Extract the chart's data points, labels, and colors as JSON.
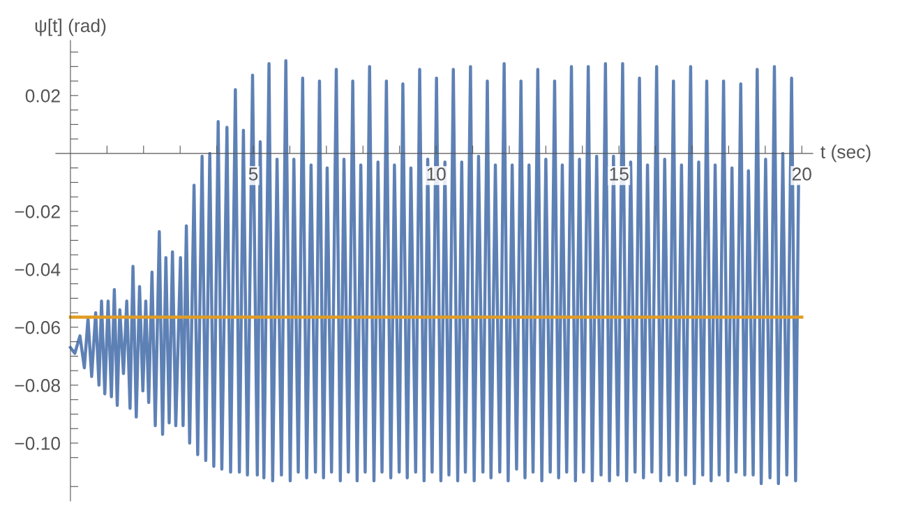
{
  "chart_data": {
    "type": "line",
    "xlabel": "t (sec)",
    "ylabel": "ψ[t] (rad)",
    "xlim": [
      -0.4,
      20.3
    ],
    "ylim": [
      -0.12,
      0.039
    ],
    "xticks": [
      {
        "value": 1,
        "label": null
      },
      {
        "value": 2,
        "label": null
      },
      {
        "value": 3,
        "label": null
      },
      {
        "value": 4,
        "label": null
      },
      5,
      {
        "value": 6,
        "label": null
      },
      {
        "value": 7,
        "label": null
      },
      {
        "value": 8,
        "label": null
      },
      {
        "value": 9,
        "label": null
      },
      10,
      {
        "value": 11,
        "label": null
      },
      {
        "value": 12,
        "label": null
      },
      {
        "value": 13,
        "label": null
      },
      {
        "value": 14,
        "label": null
      },
      15,
      {
        "value": 16,
        "label": null
      },
      {
        "value": 17,
        "label": null
      },
      {
        "value": 18,
        "label": null
      },
      {
        "value": 19,
        "label": null
      },
      20
    ],
    "yticks": [
      {
        "value": -0.115,
        "label": null
      },
      {
        "value": -0.1,
        "label": "−0.10"
      },
      {
        "value": -0.105,
        "label": null
      },
      {
        "value": -0.095,
        "label": null
      },
      {
        "value": -0.09,
        "label": null
      },
      {
        "value": -0.085,
        "label": null
      },
      {
        "value": -0.08,
        "label": "−0.08"
      },
      {
        "value": -0.075,
        "label": null
      },
      {
        "value": -0.07,
        "label": null
      },
      {
        "value": -0.065,
        "label": null
      },
      {
        "value": -0.06,
        "label": "−0.06"
      },
      {
        "value": -0.055,
        "label": null
      },
      {
        "value": -0.05,
        "label": null
      },
      {
        "value": -0.045,
        "label": null
      },
      {
        "value": -0.04,
        "label": "−0.04"
      },
      {
        "value": -0.035,
        "label": null
      },
      {
        "value": -0.03,
        "label": null
      },
      {
        "value": -0.025,
        "label": null
      },
      {
        "value": -0.02,
        "label": "−0.02"
      },
      {
        "value": -0.015,
        "label": null
      },
      {
        "value": -0.01,
        "label": null
      },
      {
        "value": -0.005,
        "label": null
      },
      {
        "value": 0.005,
        "label": null
      },
      {
        "value": 0.01,
        "label": null
      },
      {
        "value": 0.015,
        "label": null
      },
      {
        "value": 0.02,
        "label": "0.02"
      },
      {
        "value": 0.025,
        "label": null
      },
      {
        "value": 0.03,
        "label": null
      },
      {
        "value": 0.035,
        "label": null
      }
    ],
    "grid": false,
    "marker": "none",
    "line_style": "solid",
    "series": [
      {
        "color": "#5e81b5",
        "x": [
          0,
          0.12,
          0.26,
          0.38,
          0.48,
          0.58,
          0.69,
          0.78,
          0.85,
          0.94,
          1.03,
          1.12,
          1.2,
          1.28,
          1.35,
          1.45,
          1.54,
          1.63,
          1.71,
          1.8,
          1.89,
          1.98,
          2.06,
          2.14,
          2.23,
          2.32,
          2.43,
          2.52,
          2.61,
          2.7,
          2.79,
          2.88,
          3.01,
          3.08,
          3.17,
          3.26,
          3.38,
          3.48,
          3.6,
          3.7,
          3.81,
          3.92,
          4.04,
          4.14,
          4.28,
          4.38,
          4.51,
          4.62,
          4.73,
          4.84,
          4.98,
          5.11,
          5.19,
          5.29,
          5.43,
          5.53,
          5.65,
          5.77,
          5.89,
          6.01,
          6.11,
          6.23,
          6.35,
          6.46,
          6.58,
          6.7,
          6.81,
          6.92,
          7.02,
          7.14,
          7.27,
          7.38,
          7.48,
          7.6,
          7.72,
          7.84,
          7.94,
          8.06,
          8.18,
          8.3,
          8.41,
          8.52,
          8.64,
          8.76,
          8.86,
          8.99,
          9.09,
          9.21,
          9.31,
          9.44,
          9.55,
          9.67,
          9.77,
          9.89,
          10.01,
          10.13,
          10.24,
          10.35,
          10.47,
          10.59,
          10.7,
          10.8,
          10.94,
          11.04,
          11.16,
          11.28,
          11.4,
          11.5,
          11.62,
          11.74,
          11.86,
          11.97,
          12.08,
          12.2,
          12.32,
          12.43,
          12.54,
          12.65,
          12.78,
          12.89,
          13.0,
          13.12,
          13.24,
          13.35,
          13.45,
          13.57,
          13.7,
          13.81,
          13.92,
          14.03,
          14.16,
          14.27,
          14.39,
          14.51,
          14.63,
          14.74,
          14.85,
          14.97,
          15.1,
          15.21,
          15.32,
          15.44,
          15.56,
          15.67,
          15.78,
          15.9,
          16.03,
          16.14,
          16.25,
          16.37,
          16.49,
          16.59,
          16.71,
          16.82,
          16.96,
          17.06,
          17.18,
          17.29,
          17.4,
          17.52,
          17.63,
          17.74,
          17.86,
          17.98,
          18.09,
          18.2,
          18.33,
          18.44,
          18.54,
          18.67,
          18.78,
          18.89,
          19.01,
          19.13,
          19.25,
          19.36,
          19.48,
          19.59,
          19.72,
          19.83,
          19.91
        ],
        "values": [
          -0.067,
          -0.069,
          -0.063,
          -0.074,
          -0.057,
          -0.077,
          -0.055,
          -0.08,
          -0.051,
          -0.083,
          -0.051,
          -0.084,
          -0.047,
          -0.087,
          -0.054,
          -0.076,
          -0.051,
          -0.088,
          -0.039,
          -0.091,
          -0.046,
          -0.082,
          -0.051,
          -0.086,
          -0.041,
          -0.094,
          -0.027,
          -0.097,
          -0.036,
          -0.093,
          -0.034,
          -0.094,
          -0.036,
          -0.094,
          -0.025,
          -0.1,
          -0.011,
          -0.104,
          -0.001,
          -0.106,
          0.0,
          -0.108,
          0.011,
          -0.109,
          0.009,
          -0.11,
          0.022,
          -0.11,
          0.008,
          -0.111,
          0.027,
          -0.111,
          0.004,
          -0.112,
          0.031,
          -0.113,
          -0.002,
          -0.111,
          0.032,
          -0.113,
          -0.002,
          -0.11,
          0.026,
          -0.112,
          -0.004,
          -0.11,
          0.025,
          -0.112,
          -0.005,
          -0.11,
          0.029,
          -0.113,
          -0.002,
          -0.11,
          0.025,
          -0.113,
          -0.004,
          -0.11,
          0.03,
          -0.113,
          -0.003,
          -0.11,
          0.025,
          -0.112,
          -0.004,
          -0.11,
          0.024,
          -0.112,
          -0.005,
          -0.11,
          0.029,
          -0.113,
          -0.002,
          -0.11,
          0.026,
          -0.113,
          -0.003,
          -0.111,
          0.029,
          -0.113,
          -0.003,
          -0.11,
          0.03,
          -0.113,
          -0.001,
          -0.11,
          0.025,
          -0.112,
          -0.004,
          -0.11,
          0.031,
          -0.113,
          -0.004,
          -0.109,
          0.025,
          -0.112,
          -0.004,
          -0.11,
          0.029,
          -0.113,
          -0.002,
          -0.11,
          0.025,
          -0.112,
          -0.004,
          -0.11,
          0.03,
          -0.113,
          -0.002,
          -0.11,
          0.03,
          -0.113,
          -0.001,
          -0.111,
          0.031,
          -0.113,
          -0.001,
          -0.111,
          0.031,
          -0.113,
          -0.003,
          -0.11,
          0.026,
          -0.112,
          -0.004,
          -0.11,
          0.03,
          -0.113,
          -0.002,
          -0.111,
          0.025,
          -0.113,
          -0.004,
          -0.111,
          0.03,
          -0.114,
          -0.003,
          -0.111,
          0.025,
          -0.113,
          -0.004,
          -0.111,
          0.025,
          -0.113,
          -0.005,
          -0.11,
          0.024,
          -0.111,
          -0.006,
          -0.111,
          0.029,
          -0.114,
          -0.002,
          -0.112,
          0.03,
          -0.114,
          0.0,
          -0.111,
          0.026,
          -0.113,
          -0.011
        ]
      },
      {
        "color": "#e19c24",
        "x": [
          0,
          20
        ],
        "values": [
          -0.0565,
          -0.0565
        ]
      }
    ]
  }
}
